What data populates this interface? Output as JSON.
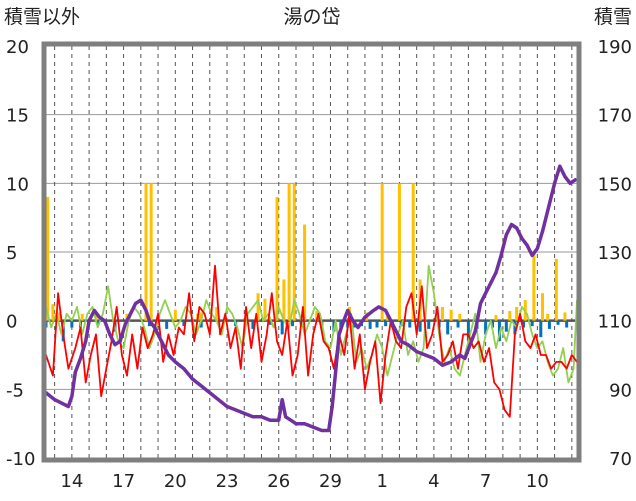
{
  "chart_data": {
    "type": "line",
    "title": "湯の岱",
    "left_axis_label": "積雪以外",
    "right_axis_label": "積雪",
    "left_ylim": [
      -10,
      20
    ],
    "right_ylim": [
      70,
      190
    ],
    "left_yticks": [
      "20",
      "15",
      "10",
      "5",
      "0",
      "-5",
      "-10"
    ],
    "right_yticks": [
      "190",
      "170",
      "150",
      "130",
      "110",
      "90",
      "70"
    ],
    "x_tick_labels": [
      "14",
      "17",
      "20",
      "23",
      "26",
      "29",
      "1",
      "4",
      "7",
      "10"
    ],
    "x_tick_days": [
      0,
      3,
      6,
      9,
      12,
      15,
      18,
      21,
      24,
      27
    ],
    "x_range_days": [
      -1.5,
      29.3
    ],
    "grid": true,
    "colors": {
      "snow_depth": "#7030a0",
      "temperature_max": "#ff0000",
      "temperature_min": "#92d050",
      "precipitation": "#ffc000",
      "snow_change": "#0070c0"
    },
    "series": [
      {
        "key": "snow_depth",
        "axis": "right",
        "x": [
          -1.5,
          -1.0,
          -0.6,
          -0.2,
          0.0,
          0.2,
          0.5,
          0.8,
          1.0,
          1.3,
          1.6,
          1.9,
          2.2,
          2.5,
          2.8,
          3.1,
          3.4,
          3.7,
          4.0,
          4.3,
          4.5,
          4.8,
          5.2,
          5.6,
          6.0,
          6.5,
          7.0,
          7.5,
          8.0,
          8.5,
          9.0,
          9.5,
          10.0,
          10.5,
          11.0,
          11.5,
          12.0,
          12.2,
          12.4,
          12.7,
          13.0,
          13.5,
          14.0,
          14.5,
          14.9,
          15.1,
          15.3,
          15.5,
          15.7,
          16.0,
          16.3,
          16.6,
          17.0,
          17.5,
          17.8,
          18.2,
          18.5,
          18.8,
          19.1,
          19.5,
          20.0,
          20.5,
          21.0,
          21.5,
          22.0,
          22.5,
          22.8,
          23.1,
          23.4,
          23.7,
          24.0,
          24.3,
          24.6,
          24.9,
          25.2,
          25.5,
          25.8,
          26.1,
          26.4,
          26.7,
          27.0,
          27.3,
          27.6,
          28.0,
          28.3,
          28.6,
          28.9,
          29.2
        ],
        "values": [
          89,
          87,
          86,
          85,
          88,
          95,
          99,
          104,
          110,
          113,
          111,
          110,
          106,
          103,
          104,
          109,
          112,
          115,
          116,
          113,
          110,
          108,
          104,
          100,
          98,
          96,
          93,
          91,
          89,
          87,
          85,
          84,
          83,
          82,
          82,
          81,
          81,
          87,
          82,
          81,
          80,
          80,
          79,
          78,
          78,
          85,
          95,
          106,
          109,
          113,
          110,
          108,
          111,
          113,
          114,
          113,
          110,
          107,
          104,
          103,
          101,
          100,
          99,
          97,
          98,
          100,
          99,
          103,
          107,
          115,
          118,
          121,
          124,
          129,
          135,
          138,
          137,
          134,
          132,
          129,
          131,
          136,
          142,
          150,
          155,
          152,
          150,
          151
        ],
        "name": ""
      },
      {
        "key": "temperature_max",
        "axis": "left",
        "x": [
          -1.5,
          -1.1,
          -0.8,
          -0.5,
          -0.2,
          0.2,
          0.5,
          0.8,
          1.1,
          1.4,
          1.7,
          2.0,
          2.3,
          2.6,
          2.9,
          3.2,
          3.5,
          3.8,
          4.1,
          4.4,
          4.7,
          5.0,
          5.3,
          5.6,
          5.9,
          6.2,
          6.5,
          6.8,
          7.1,
          7.4,
          7.7,
          8.0,
          8.3,
          8.6,
          8.9,
          9.2,
          9.5,
          9.8,
          10.1,
          10.4,
          10.7,
          11.0,
          11.3,
          11.6,
          11.9,
          12.2,
          12.5,
          12.8,
          13.1,
          13.4,
          13.7,
          14.0,
          14.3,
          14.6,
          14.9,
          15.2,
          15.5,
          15.8,
          16.1,
          16.4,
          16.7,
          17.0,
          17.3,
          17.6,
          17.9,
          18.2,
          18.5,
          18.8,
          19.1,
          19.4,
          19.7,
          20.0,
          20.3,
          20.6,
          20.9,
          21.2,
          21.5,
          21.8,
          22.1,
          22.4,
          22.7,
          23.0,
          23.3,
          23.6,
          23.9,
          24.2,
          24.5,
          24.8,
          25.1,
          25.4,
          25.7,
          26.0,
          26.3,
          26.6,
          26.9,
          27.2,
          27.5,
          27.8,
          28.1,
          28.4,
          28.7,
          29.0,
          29.3
        ],
        "values": [
          -2.5,
          -4,
          2,
          -1,
          -3.5,
          -2,
          -0.5,
          -4.5,
          -2.5,
          -1,
          -5.5,
          -3.5,
          -1.5,
          1,
          -2.5,
          -4,
          -1,
          -3.5,
          -0.5,
          -2,
          -1,
          0.5,
          -3,
          -1,
          -2.5,
          -0.5,
          -1,
          2,
          -1.5,
          1,
          0.5,
          -1,
          4,
          -1,
          0.5,
          -2,
          -0.5,
          -3.5,
          1,
          -2,
          0.5,
          -3,
          -1,
          2,
          -1.5,
          -2.5,
          0,
          -4,
          -2.5,
          1,
          -4,
          -1,
          0.5,
          -1.5,
          -2,
          -3.5,
          -1,
          -2.5,
          0.5,
          -3.5,
          -1,
          -5,
          -3,
          -1.5,
          -6,
          -2.5,
          0,
          -1.5,
          -2,
          1,
          2,
          -1,
          2.5,
          -2,
          -1,
          1,
          -3,
          -2.5,
          -1.5,
          -3.5,
          -1,
          -1,
          -2,
          -1.5,
          -3,
          -2,
          -4.5,
          -5,
          -6.5,
          -7,
          -1,
          0.5,
          -1.5,
          -2,
          -1,
          -2.5,
          -2.5,
          -3.5,
          -3,
          -3,
          -3.5,
          -2.5,
          -3
        ],
        "name": ""
      },
      {
        "key": "temperature_min",
        "axis": "left",
        "x": [
          -1.5,
          -1.2,
          -0.9,
          -0.6,
          -0.3,
          0.0,
          0.3,
          0.6,
          0.9,
          1.2,
          1.5,
          1.8,
          2.1,
          2.4,
          2.7,
          3.0,
          3.3,
          3.6,
          3.9,
          4.2,
          4.5,
          4.8,
          5.1,
          5.4,
          5.7,
          6.0,
          6.3,
          6.6,
          6.9,
          7.2,
          7.5,
          7.8,
          8.1,
          8.4,
          8.7,
          9.0,
          9.3,
          9.6,
          9.9,
          10.2,
          10.5,
          10.8,
          11.1,
          11.4,
          11.7,
          12.0,
          12.3,
          12.6,
          12.9,
          13.2,
          13.5,
          13.8,
          14.1,
          14.4,
          14.7,
          15.0,
          15.3,
          15.6,
          15.9,
          16.2,
          16.5,
          16.8,
          17.1,
          17.4,
          17.7,
          18.0,
          18.3,
          18.6,
          18.9,
          19.2,
          19.5,
          19.8,
          20.1,
          20.4,
          20.7,
          21.0,
          21.3,
          21.6,
          21.9,
          22.2,
          22.5,
          22.8,
          23.1,
          23.4,
          23.7,
          24.0,
          24.3,
          24.6,
          24.9,
          25.2,
          25.5,
          25.8,
          26.1,
          26.4,
          26.7,
          27.0,
          27.3,
          27.6,
          27.9,
          28.2,
          28.5,
          28.8,
          29.1,
          29.3
        ],
        "values": [
          1,
          -0.5,
          0.5,
          -1,
          0.5,
          0,
          1,
          -1,
          0.5,
          1,
          -0.5,
          0.5,
          2.5,
          0,
          -1.5,
          -2,
          0,
          1,
          0.5,
          -0.5,
          -2,
          -1,
          0.5,
          1.5,
          0.5,
          -0.5,
          0,
          1,
          0.5,
          -1,
          0,
          1.5,
          0.5,
          0,
          -1,
          1,
          0.5,
          -0.5,
          -2,
          0.5,
          1,
          1.5,
          0,
          0.5,
          -0.5,
          1,
          0,
          -0.5,
          1.5,
          0.5,
          -1,
          0,
          1,
          0.5,
          -1.5,
          -2,
          0,
          -2.5,
          -1,
          0.5,
          -3,
          -2,
          -3.5,
          -2.5,
          -1,
          -2,
          -4,
          -2.5,
          -1,
          0,
          -2.5,
          -1.5,
          -3,
          -2,
          4,
          2,
          -1,
          -3,
          -2,
          -3.5,
          -4,
          -2.5,
          -1,
          0.5,
          -3,
          -1,
          0,
          -2,
          -0.5,
          -1.5,
          0,
          -0.5,
          1,
          0.5,
          -1,
          -2,
          -1.5,
          -3,
          -4,
          -3.5,
          -2,
          -4.5,
          -3.5,
          1.5
        ],
        "name": ""
      },
      {
        "key": "precipitation",
        "axis": "left",
        "kind": "bar",
        "x": [
          -1.4,
          -1.1,
          -0.7,
          0.6,
          1.4,
          3.2,
          4.3,
          4.6,
          6.0,
          7.3,
          7.5,
          8.4,
          10.8,
          11.2,
          11.9,
          12.3,
          12.6,
          12.9,
          13.5,
          14.2,
          16.1,
          17.1,
          18.0,
          18.3,
          19.0,
          19.8,
          20.2,
          21.5,
          22.0,
          22.5,
          24.6,
          25.4,
          25.8,
          26.3,
          26.8,
          27.3,
          27.6,
          28.1,
          28.6
        ],
        "values": [
          9,
          1.2,
          0.6,
          0.5,
          0.6,
          0.5,
          10,
          10,
          0.8,
          0.5,
          0.6,
          1,
          2,
          1.6,
          9,
          3,
          10,
          10,
          7,
          0.7,
          1,
          0.6,
          10,
          0.5,
          10,
          10,
          3,
          1,
          0.8,
          0.5,
          0.4,
          0.7,
          1,
          1.5,
          5,
          2,
          0.5,
          4.5,
          0.6
        ],
        "name": ""
      },
      {
        "key": "snow_change",
        "axis": "left",
        "kind": "bar",
        "x": [
          -1.5,
          -0.5,
          0.0,
          0.5,
          1.5,
          2.5,
          4.5,
          5.5,
          6.5,
          7.5,
          8.5,
          9.5,
          10.5,
          11.5,
          12.2,
          12.8,
          13.3,
          14.5,
          15.2,
          15.6,
          16.0,
          16.4,
          16.8,
          17.3,
          17.7,
          18.2,
          18.6,
          19.1,
          19.6,
          20.2,
          20.7,
          21.3,
          21.8,
          22.4,
          23.0,
          23.5,
          24.0,
          24.4,
          24.8,
          25.2,
          25.7,
          26.2,
          26.7,
          27.2,
          27.7,
          28.2,
          28.7
        ],
        "values": [
          -0.5,
          -1.5,
          -0.5,
          -0.5,
          -0.3,
          -0.8,
          -0.4,
          -0.6,
          -0.4,
          -0.5,
          -0.3,
          -0.4,
          -0.6,
          -0.3,
          -1,
          -0.4,
          -0.3,
          -0.5,
          -0.8,
          -0.5,
          -0.5,
          -0.5,
          -0.4,
          -0.6,
          -0.5,
          -0.4,
          -0.5,
          -0.4,
          -0.5,
          -0.8,
          -0.6,
          -0.5,
          -1,
          -0.5,
          -1.5,
          -0.6,
          -1,
          -0.5,
          -1.5,
          -0.8,
          -1,
          -0.5,
          -0.4,
          -1.2,
          -0.6,
          -0.3,
          -0.5
        ],
        "name": ""
      }
    ]
  }
}
